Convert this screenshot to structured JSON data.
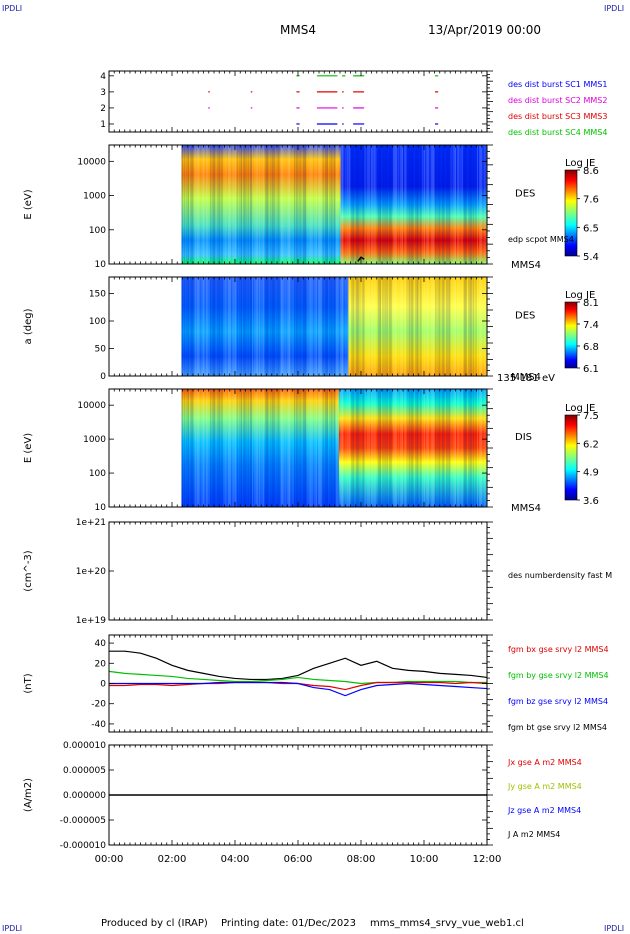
{
  "corners": {
    "tl": "IPDLI",
    "tr": "IPDLI",
    "bl": "IPDLI",
    "br": "IPDLI"
  },
  "header": {
    "spacecraft": "MMS4",
    "datetime": "13/Apr/2019 00:00"
  },
  "footer": {
    "producer": "Produced by cl (IRAP)",
    "printing": "Printing date: 01/Dec/2023",
    "file": "mms_mms4_srvy_vue_web1.cl"
  },
  "colors": {
    "blue": "#0000ff",
    "magenta": "#e000e0",
    "red": "#e00000",
    "green": "#00c000",
    "black": "#000000"
  },
  "chart_data": [
    {
      "type": "scatter",
      "id": "burst",
      "title": "",
      "xlabel": "",
      "ylabel": "",
      "x_range_hours": [
        0,
        12
      ],
      "ylim": [
        0.5,
        4.3
      ],
      "y_ticks": [
        "1",
        "2",
        "3",
        "4"
      ],
      "legend": [
        "des dist burst SC1 MMS1",
        "des dist burst SC2 MMS2",
        "des dist burst SC3 MMS3",
        "des dist burst SC4 MMS4"
      ],
      "legend_colors": [
        "#0000ff",
        "#e000e0",
        "#e00000",
        "#00c000"
      ],
      "segments": [
        {
          "level": 4,
          "color": "#00c000",
          "intervals": [
            [
              5.95,
              6.05
            ],
            [
              6.6,
              7.25
            ],
            [
              7.4,
              7.5
            ],
            [
              7.75,
              8.1
            ],
            [
              10.35,
              10.45
            ]
          ]
        },
        {
          "level": 3,
          "color": "#e00000",
          "intervals": [
            [
              3.15,
              3.2
            ],
            [
              4.5,
              4.55
            ],
            [
              5.95,
              6.05
            ],
            [
              6.6,
              7.25
            ],
            [
              7.4,
              7.45
            ],
            [
              7.75,
              8.1
            ],
            [
              10.35,
              10.45
            ]
          ]
        },
        {
          "level": 2,
          "color": "#e000e0",
          "intervals": [
            [
              3.15,
              3.2
            ],
            [
              4.5,
              4.55
            ],
            [
              5.95,
              6.05
            ],
            [
              6.6,
              7.25
            ],
            [
              7.4,
              7.45
            ],
            [
              7.75,
              8.1
            ],
            [
              10.35,
              10.45
            ]
          ]
        },
        {
          "level": 1,
          "color": "#0000ff",
          "intervals": [
            [
              5.95,
              6.05
            ],
            [
              6.6,
              7.25
            ],
            [
              7.4,
              7.45
            ],
            [
              7.75,
              8.1
            ],
            [
              10.35,
              10.45
            ]
          ]
        }
      ]
    },
    {
      "type": "heatmap",
      "id": "des-energy",
      "ylabel": "E (eV)",
      "yscale": "log",
      "ylim": [
        10,
        30000
      ],
      "y_ticks": [
        "10",
        "100",
        "1000",
        "10000"
      ],
      "label": "DES",
      "sublabel": "edp scpot MMS4",
      "unit_label": "MMS4",
      "colorbar": {
        "label": "Log JE",
        "ticks": [
          "8.6",
          "7.6",
          "6.5",
          "5.4"
        ],
        "range": [
          5.4,
          8.6
        ]
      },
      "data_start_hours": 2.3,
      "overlay_start_hours": 7.35
    },
    {
      "type": "heatmap",
      "id": "des-pitch",
      "ylabel": "a (deg)",
      "ylim": [
        0,
        180
      ],
      "y_ticks": [
        "0",
        "50",
        "100",
        "150"
      ],
      "label": "DES",
      "unit_label": "MMS4",
      "energy_label": "135-181 eV",
      "colorbar": {
        "label": "Log JE",
        "ticks": [
          "8.1",
          "7.4",
          "6.8",
          "6.1"
        ],
        "range": [
          6.1,
          8.1
        ]
      },
      "data_start_hours": 2.3
    },
    {
      "type": "heatmap",
      "id": "dis-energy",
      "ylabel": "E (eV)",
      "yscale": "log",
      "ylim": [
        10,
        30000
      ],
      "y_ticks": [
        "10",
        "100",
        "1000",
        "10000"
      ],
      "label": "DIS",
      "unit_label": "MMS4",
      "colorbar": {
        "label": "Log JE",
        "ticks": [
          "7.5",
          "6.2",
          "4.9",
          "3.6"
        ],
        "range": [
          3.6,
          7.5
        ]
      },
      "data_start_hours": 2.3
    },
    {
      "type": "line",
      "id": "density",
      "ylabel": "(cm^-3)",
      "yscale": "log",
      "ylim": [
        1e+19,
        1e+21
      ],
      "y_ticks": [
        "1e+19",
        "1e+20",
        "1e+21"
      ],
      "legend": [
        "des numberdensity fast M"
      ],
      "series": []
    },
    {
      "type": "line",
      "id": "fgm",
      "ylabel": "(nT)",
      "ylim": [
        -48,
        48
      ],
      "y_ticks": [
        "-40",
        "-20",
        "0",
        "20",
        "40"
      ],
      "legend": [
        "fgm bx gse srvy l2 MMS4",
        "fgm by gse srvy l2 MMS4",
        "fgm bz gse srvy l2 MMS4",
        "fgm bt gse srvy l2 MMS4"
      ],
      "legend_colors": [
        "#e00000",
        "#00c000",
        "#0000ff",
        "#000000"
      ],
      "series": [
        {
          "color": "#000000",
          "x": [
            0,
            0.5,
            1,
            1.5,
            2,
            2.5,
            3,
            3.5,
            4,
            4.5,
            5,
            5.5,
            6,
            6.5,
            7,
            7.5,
            8,
            8.5,
            9,
            9.5,
            10,
            10.5,
            11,
            11.5,
            12
          ],
          "y": [
            32,
            32,
            30,
            25,
            18,
            13,
            10,
            7,
            5,
            4,
            4,
            5,
            8,
            15,
            20,
            25,
            18,
            22,
            15,
            13,
            12,
            10,
            9,
            8,
            6
          ]
        },
        {
          "color": "#00c000",
          "x": [
            0,
            0.5,
            1,
            1.5,
            2,
            2.5,
            3,
            3.5,
            4,
            4.5,
            5,
            5.5,
            6,
            6.5,
            7,
            7.5,
            8,
            8.5,
            9,
            9.5,
            10,
            10.5,
            11,
            11.5,
            12
          ],
          "y": [
            12,
            10,
            9,
            8,
            7,
            5,
            4,
            3,
            2,
            2,
            3,
            4,
            6,
            4,
            3,
            2,
            0,
            1,
            1,
            2,
            2,
            2,
            2,
            1,
            1
          ]
        },
        {
          "color": "#e00000",
          "x": [
            0,
            0.5,
            1,
            1.5,
            2,
            2.5,
            3,
            3.5,
            4,
            4.5,
            5,
            5.5,
            6,
            6.5,
            7,
            7.5,
            8,
            8.5,
            9,
            9.5,
            10,
            10.5,
            11,
            11.5,
            12
          ],
          "y": [
            -2,
            -2,
            -1,
            -1,
            -2,
            -1,
            0,
            0,
            1,
            1,
            1,
            0,
            0,
            -2,
            -3,
            -6,
            -2,
            1,
            1,
            1,
            1,
            1,
            0,
            1,
            0
          ]
        },
        {
          "color": "#0000ff",
          "x": [
            0,
            0.5,
            1,
            1.5,
            2,
            2.5,
            3,
            3.5,
            4,
            4.5,
            5,
            5.5,
            6,
            6.5,
            7,
            7.5,
            8,
            8.5,
            9,
            9.5,
            10,
            10.5,
            11,
            11.5,
            12
          ],
          "y": [
            0,
            0,
            0,
            0,
            0,
            0,
            0,
            1,
            1,
            1,
            1,
            1,
            0,
            -4,
            -6,
            -12,
            -6,
            -2,
            -1,
            0,
            -1,
            -2,
            -3,
            -4,
            -5
          ]
        }
      ]
    },
    {
      "type": "line",
      "id": "current",
      "ylabel": "(A/m2)",
      "ylim": [
        -1e-05,
        1e-05
      ],
      "y_ticks": [
        "-0.000010",
        "-0.000005",
        "0.000000",
        "0.000005",
        "0.000010"
      ],
      "xlabel": "",
      "x_ticks": [
        "00:00",
        "02:00",
        "04:00",
        "06:00",
        "08:00",
        "10:00",
        "12:00"
      ],
      "legend": [
        "Jx gse A m2 MMS4",
        "Jy gse A m2 MMS4",
        "Jz gse A m2 MMS4",
        "J A m2 MMS4"
      ],
      "legend_colors": [
        "#e00000",
        "#a0c000",
        "#0000ff",
        "#000000"
      ],
      "series": [
        {
          "color": "#000000",
          "x": [
            0,
            12
          ],
          "y": [
            0,
            0
          ]
        }
      ]
    }
  ]
}
